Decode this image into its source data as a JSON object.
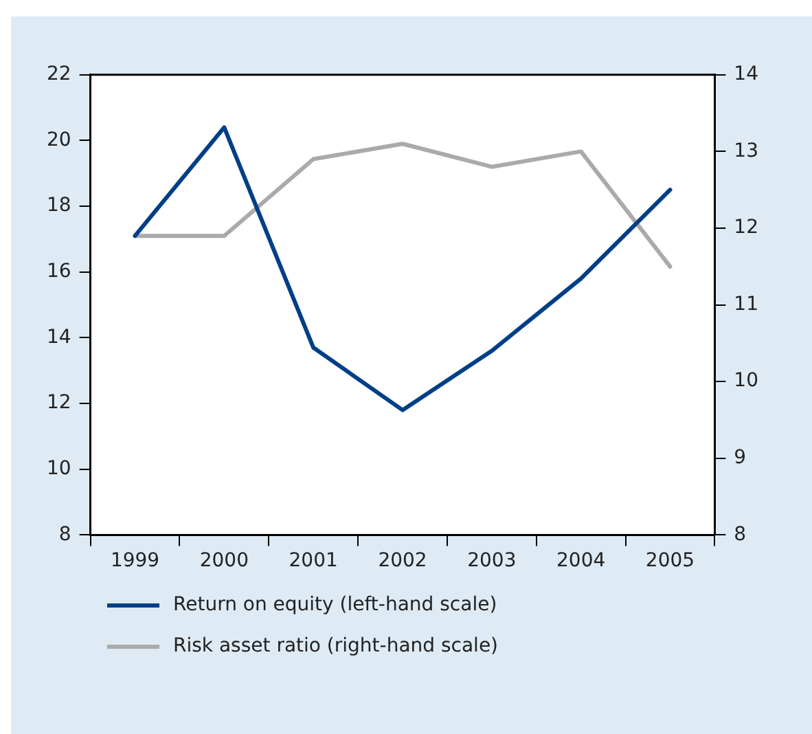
{
  "chart_data": {
    "type": "line",
    "categories": [
      "1999",
      "2000",
      "2001",
      "2002",
      "2003",
      "2004",
      "2005"
    ],
    "series": [
      {
        "name": "Return on equity (left-hand scale)",
        "color": "#003f87",
        "values": [
          17.1,
          20.4,
          13.7,
          11.8,
          13.6,
          15.8,
          18.5
        ]
      },
      {
        "name": "Risk asset ratio (right-hand scale)",
        "color": "#aaaaaa",
        "axis": "y2",
        "values": [
          11.9,
          11.9,
          12.9,
          13.1,
          12.8,
          13.0,
          11.5
        ]
      }
    ],
    "ylim": [
      8,
      22
    ],
    "yticks": [
      8,
      10,
      12,
      14,
      16,
      18,
      20,
      22
    ],
    "y2lim": [
      8,
      14
    ],
    "y2ticks": [
      8,
      9,
      10,
      11,
      12,
      13,
      14
    ],
    "grid": false,
    "legend": "bottom",
    "marker": "none",
    "line_style": "solid"
  }
}
